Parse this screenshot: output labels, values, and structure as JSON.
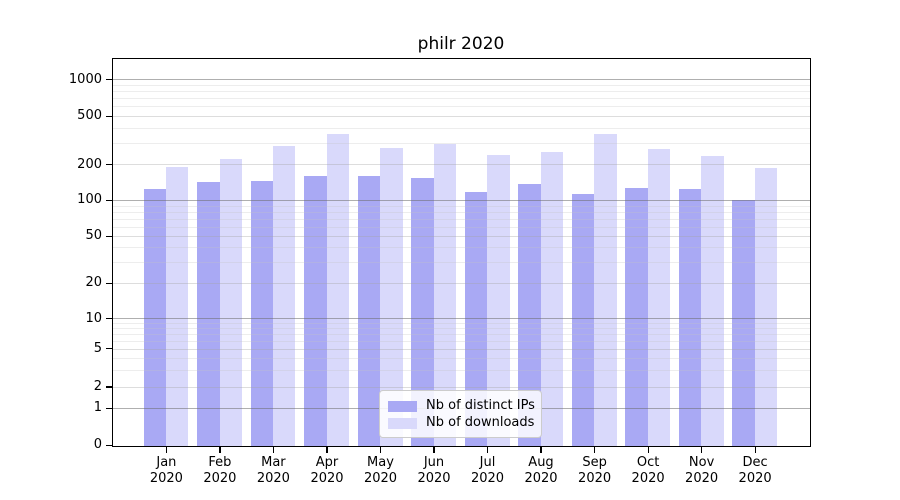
{
  "title": "philr 2020",
  "colors": {
    "distinct_ips_bar": "#a9a9f4",
    "downloads_bar": "#d9d9fb",
    "grid_major": "#a0a0a0",
    "grid_minor": "#e9e9e9",
    "axis": "#000000"
  },
  "legend": {
    "items": [
      {
        "label": "Nb of distinct IPs",
        "series_key": "distinct_ips"
      },
      {
        "label": "Nb of downloads",
        "series_key": "downloads"
      }
    ]
  },
  "chart_data": {
    "type": "bar",
    "title": "philr 2020",
    "categories": [
      "Jan 2020",
      "Feb 2020",
      "Mar 2020",
      "Apr 2020",
      "May 2020",
      "Jun 2020",
      "Jul 2020",
      "Aug 2020",
      "Sep 2020",
      "Oct 2020",
      "Nov 2020",
      "Dec 2020"
    ],
    "series": [
      {
        "name": "Nb of distinct IPs",
        "key": "distinct_ips",
        "color": "#a9a9f4",
        "values": [
          124,
          142,
          146,
          161,
          160,
          153,
          118,
          138,
          112,
          126,
          123,
          100
        ]
      },
      {
        "name": "Nb of downloads",
        "key": "downloads",
        "color": "#d9d9fb",
        "values": [
          190,
          222,
          282,
          357,
          272,
          293,
          237,
          253,
          353,
          266,
          236,
          188
        ]
      }
    ],
    "yticks": [
      0,
      1,
      2,
      5,
      10,
      20,
      50,
      100,
      200,
      500,
      1000
    ],
    "yscale": "log-like with 0 baseline",
    "ylim": [
      0,
      1450
    ],
    "grid": "horizontal only, log minor lines, decades darker",
    "legend_position": "lower center inside plot"
  }
}
